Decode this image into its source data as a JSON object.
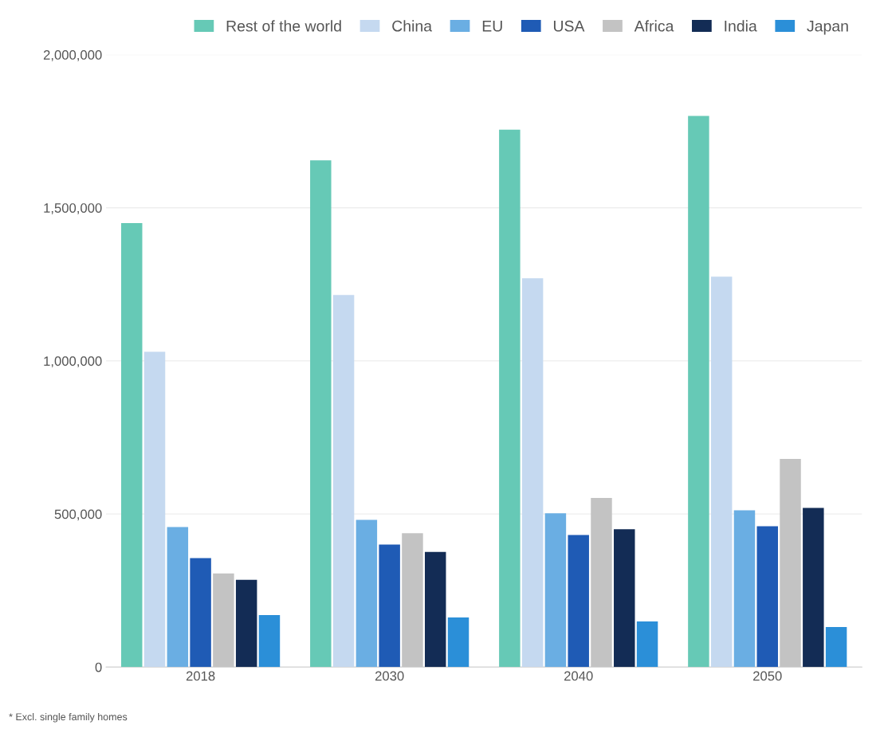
{
  "chart_data": {
    "type": "bar",
    "categories": [
      "2018",
      "2030",
      "2040",
      "2050"
    ],
    "series": [
      {
        "name": "Rest of the world",
        "color": "#66c9b6",
        "values": [
          1450000,
          1655000,
          1755000,
          1800000
        ]
      },
      {
        "name": "China",
        "color": "#c5d9f0",
        "values": [
          1030000,
          1215000,
          1270000,
          1275000
        ]
      },
      {
        "name": "EU",
        "color": "#6aaee3",
        "values": [
          457000,
          481000,
          502000,
          512000
        ]
      },
      {
        "name": "USA",
        "color": "#1f5bb5",
        "values": [
          356000,
          400000,
          431000,
          460000
        ]
      },
      {
        "name": "Africa",
        "color": "#c3c3c3",
        "values": [
          306000,
          437000,
          552000,
          680000
        ]
      },
      {
        "name": "India",
        "color": "#132c55",
        "values": [
          285000,
          376000,
          450000,
          520000
        ]
      },
      {
        "name": "Japan",
        "color": "#2b8fd8",
        "values": [
          170000,
          162000,
          149000,
          131000
        ]
      }
    ],
    "ylim": [
      0,
      2000000
    ],
    "yticks": [
      {
        "value": 0,
        "label": "0"
      },
      {
        "value": 500000,
        "label": "500,000"
      },
      {
        "value": 1000000,
        "label": "1,000,000"
      },
      {
        "value": 1500000,
        "label": "1,500,000"
      },
      {
        "value": 2000000,
        "label": "2,000,000"
      }
    ],
    "grid": "y",
    "legend": "top",
    "annotations": [
      "* Excl. single family homes"
    ]
  }
}
